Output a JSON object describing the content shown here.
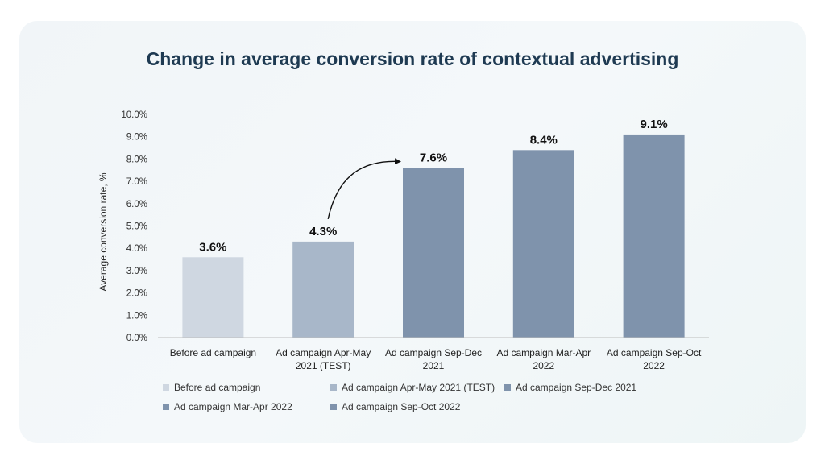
{
  "chart_data": {
    "type": "bar",
    "title": "Change in average conversion rate of contextual advertising",
    "ylabel": "Average conversion rate, %",
    "xlabel": "",
    "ylim": [
      0,
      10
    ],
    "yticks": [
      "0.0%",
      "1.0%",
      "2.0%",
      "3.0%",
      "4.0%",
      "5.0%",
      "6.0%",
      "7.0%",
      "8.0%",
      "9.0%",
      "10.0%"
    ],
    "categories": [
      [
        "Before ad campaign"
      ],
      [
        "Ad campaign Apr-May",
        "2021 (TEST)"
      ],
      [
        "Ad campaign Sep-Dec",
        "2021"
      ],
      [
        "Ad campaign Mar-Apr",
        "2022"
      ],
      [
        "Ad campaign Sep-Oct",
        "2022"
      ]
    ],
    "values": [
      3.6,
      4.3,
      7.6,
      8.4,
      9.1
    ],
    "data_labels": [
      "3.6%",
      "4.3%",
      "7.6%",
      "8.4%",
      "9.1%"
    ],
    "colors": [
      "#cfd7e1",
      "#a8b7c9",
      "#7f93ac",
      "#7f93ac",
      "#7f93ac"
    ],
    "legend": [
      "Before ad campaign",
      "Ad campaign Apr-May 2021 (TEST)",
      "Ad campaign Sep-Dec 2021",
      "Ad campaign Mar-Apr 2022",
      "Ad campaign Sep-Oct 2022"
    ],
    "legend_position": "bottom",
    "annotation": "arrow from 4.3% bar to 7.6% bar",
    "grid": false
  }
}
